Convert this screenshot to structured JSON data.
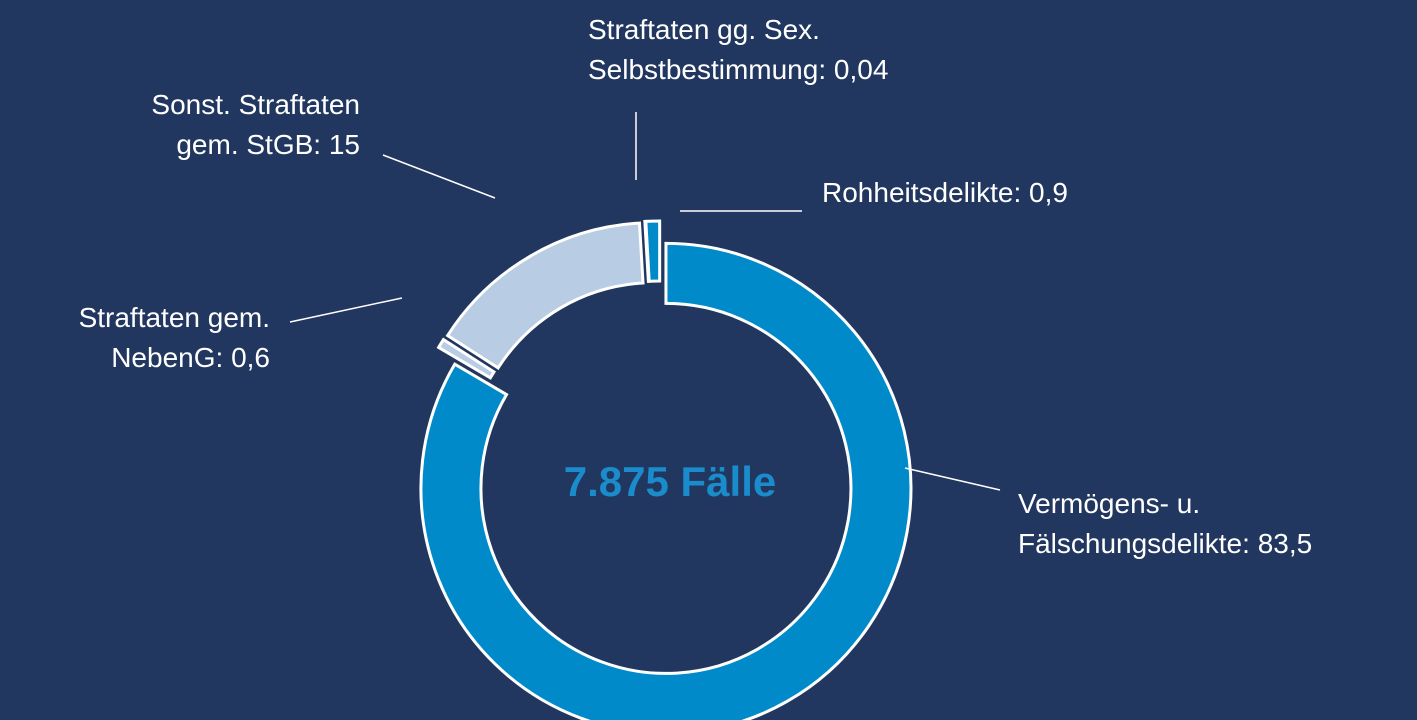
{
  "chart_data": {
    "type": "donut",
    "center_label": "7.875 Fälle",
    "categories": [
      "Vermögens- u. Fälschungsdelikte:",
      "Straftaten gem. NebenG:",
      "Sonst. Straftaten gem. StGB:",
      "Straftaten gg. Sex. Selbstbestimmung:",
      "Rohheitsdelikte:"
    ],
    "values": [
      83.5,
      0.6,
      15,
      0.04,
      0.9
    ],
    "value_labels": [
      "83,5",
      "0,6",
      "15",
      "0,04",
      "0,9"
    ],
    "colors": [
      "#008ac9",
      "#b8cce4",
      "#b8cce4",
      "#b8cce4",
      "#008ac9"
    ]
  }
}
